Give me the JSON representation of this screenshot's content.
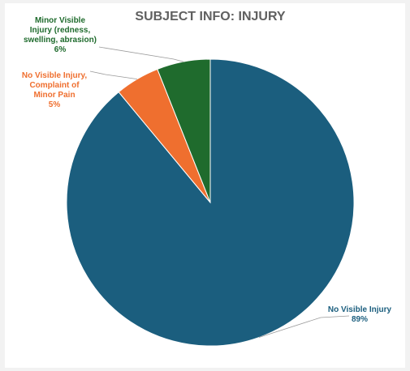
{
  "chart_data": {
    "type": "pie",
    "title": "SUBJECT INFO: INJURY",
    "slices": [
      {
        "label_lines": [
          "No Visible Injury"
        ],
        "value": 89,
        "display": "89%",
        "color": "#1b5e7e"
      },
      {
        "label_lines": [
          "No Visible Injury,",
          "Complaint of",
          "Minor Pain"
        ],
        "value": 5,
        "display": "5%",
        "color": "#ef6f2f"
      },
      {
        "label_lines": [
          "Minor Visible",
          "Injury (redness,",
          "swelling, abrasion)"
        ],
        "value": 6,
        "display": "6%",
        "color": "#1f6b2d"
      }
    ],
    "legend": "none"
  }
}
